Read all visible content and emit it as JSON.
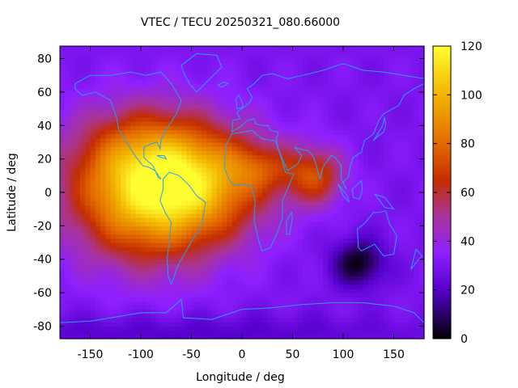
{
  "chart_data": {
    "type": "heatmap",
    "title": "VTEC / TECU 20250321_080.66000",
    "xlabel": "Longitude / deg",
    "ylabel": "Latitude / deg",
    "xlim": [
      -180,
      180
    ],
    "ylim": [
      -87.5,
      87.5
    ],
    "x_ticks": [
      -150,
      -100,
      -50,
      0,
      50,
      100,
      150
    ],
    "y_ticks": [
      -80,
      -60,
      -40,
      -20,
      0,
      20,
      40,
      60,
      80
    ],
    "colorbar": {
      "range": [
        0,
        120
      ],
      "ticks": [
        0,
        20,
        40,
        60,
        80,
        100,
        120
      ],
      "stops": [
        {
          "value": 0,
          "color": "#000000"
        },
        {
          "value": 20,
          "color": "#5500cc"
        },
        {
          "value": 35,
          "color": "#8f1fff"
        },
        {
          "value": 50,
          "color": "#a7349b"
        },
        {
          "value": 65,
          "color": "#c42d00"
        },
        {
          "value": 80,
          "color": "#e36b00"
        },
        {
          "value": 100,
          "color": "#f2b400"
        },
        {
          "value": 120,
          "color": "#ffff30"
        }
      ]
    },
    "grid_step_deg": {
      "lon": 5,
      "lat": 2.5
    },
    "coastline_color": "#2a9df4",
    "features": [
      {
        "lon": -90,
        "lat": 0,
        "sigma_lon": 55,
        "sigma_lat": 28,
        "peak": 75
      },
      {
        "lon": -35,
        "lat": 8,
        "sigma_lon": 50,
        "sigma_lat": 22,
        "peak": 35
      },
      {
        "lon": 20,
        "lat": 15,
        "sigma_lon": 22,
        "sigma_lat": 10,
        "peak": 20
      },
      {
        "lon": 72,
        "lat": 10,
        "sigma_lon": 20,
        "sigma_lat": 12,
        "peak": 38
      },
      {
        "lon": -105,
        "lat": 28,
        "sigma_lon": 45,
        "sigma_lat": 18,
        "peak": 15
      },
      {
        "lon": 115,
        "lat": -42,
        "sigma_lon": 18,
        "sigma_lat": 10,
        "peak": -28
      },
      {
        "lon": -60,
        "lat": -84,
        "sigma_lon": 180,
        "sigma_lat": 8,
        "peak": -10
      }
    ],
    "baseline_tec": 30,
    "coastlines": [
      {
        "name": "north-america",
        "points": [
          [
            -165,
            65
          ],
          [
            -150,
            70
          ],
          [
            -130,
            70
          ],
          [
            -110,
            72
          ],
          [
            -95,
            70
          ],
          [
            -80,
            72
          ],
          [
            -70,
            65
          ],
          [
            -60,
            55
          ],
          [
            -65,
            47
          ],
          [
            -70,
            42
          ],
          [
            -76,
            37
          ],
          [
            -80,
            32
          ],
          [
            -81,
            26
          ],
          [
            -84,
            30
          ],
          [
            -90,
            29
          ],
          [
            -97,
            27
          ],
          [
            -97,
            21
          ],
          [
            -92,
            18
          ],
          [
            -88,
            16
          ],
          [
            -85,
            12
          ],
          [
            -83,
            9
          ],
          [
            -80,
            8
          ],
          [
            -86,
            13
          ],
          [
            -92,
            15
          ],
          [
            -98,
            16
          ],
          [
            -106,
            22
          ],
          [
            -112,
            28
          ],
          [
            -117,
            32
          ],
          [
            -122,
            38
          ],
          [
            -124,
            45
          ],
          [
            -130,
            55
          ],
          [
            -145,
            60
          ],
          [
            -158,
            58
          ],
          [
            -165,
            62
          ],
          [
            -165,
            65
          ]
        ]
      },
      {
        "name": "south-america",
        "points": [
          [
            -78,
            8
          ],
          [
            -72,
            12
          ],
          [
            -62,
            10
          ],
          [
            -52,
            4
          ],
          [
            -45,
            -2
          ],
          [
            -36,
            -6
          ],
          [
            -38,
            -13
          ],
          [
            -40,
            -21
          ],
          [
            -48,
            -27
          ],
          [
            -55,
            -35
          ],
          [
            -60,
            -40
          ],
          [
            -65,
            -46
          ],
          [
            -68,
            -52
          ],
          [
            -70,
            -55
          ],
          [
            -73,
            -50
          ],
          [
            -74,
            -40
          ],
          [
            -72,
            -30
          ],
          [
            -70,
            -18
          ],
          [
            -76,
            -12
          ],
          [
            -81,
            -5
          ],
          [
            -78,
            2
          ],
          [
            -78,
            8
          ]
        ]
      },
      {
        "name": "africa",
        "points": [
          [
            -17,
            21
          ],
          [
            -16,
            28
          ],
          [
            -10,
            35
          ],
          [
            0,
            36
          ],
          [
            10,
            37
          ],
          [
            20,
            32
          ],
          [
            32,
            31
          ],
          [
            35,
            28
          ],
          [
            43,
            12
          ],
          [
            51,
            11
          ],
          [
            45,
            2
          ],
          [
            40,
            -5
          ],
          [
            40,
            -15
          ],
          [
            35,
            -24
          ],
          [
            28,
            -33
          ],
          [
            20,
            -35
          ],
          [
            17,
            -30
          ],
          [
            12,
            -17
          ],
          [
            13,
            -5
          ],
          [
            9,
            4
          ],
          [
            0,
            5
          ],
          [
            -8,
            4
          ],
          [
            -13,
            8
          ],
          [
            -17,
            14
          ],
          [
            -17,
            21
          ]
        ]
      },
      {
        "name": "europe-asia",
        "points": [
          [
            -10,
            36
          ],
          [
            -9,
            43
          ],
          [
            -2,
            44
          ],
          [
            -5,
            48
          ],
          [
            2,
            51
          ],
          [
            8,
            54
          ],
          [
            10,
            57
          ],
          [
            5,
            62
          ],
          [
            12,
            65
          ],
          [
            20,
            70
          ],
          [
            30,
            71
          ],
          [
            45,
            68
          ],
          [
            60,
            70
          ],
          [
            80,
            73
          ],
          [
            100,
            77
          ],
          [
            120,
            73
          ],
          [
            140,
            72
          ],
          [
            160,
            70
          ],
          [
            180,
            68
          ],
          [
            180,
            65
          ],
          [
            170,
            62
          ],
          [
            160,
            58
          ],
          [
            155,
            52
          ],
          [
            140,
            47
          ],
          [
            135,
            43
          ],
          [
            130,
            35
          ],
          [
            121,
            31
          ],
          [
            118,
            24
          ],
          [
            110,
            21
          ],
          [
            107,
            16
          ],
          [
            105,
            9
          ],
          [
            100,
            6
          ],
          [
            103,
            2
          ],
          [
            98,
            8
          ],
          [
            98,
            16
          ],
          [
            92,
            21
          ],
          [
            88,
            22
          ],
          [
            80,
            15
          ],
          [
            77,
            8
          ],
          [
            73,
            17
          ],
          [
            70,
            22
          ],
          [
            65,
            25
          ],
          [
            57,
            26
          ],
          [
            52,
            27
          ],
          [
            56,
            24
          ],
          [
            59,
            22
          ],
          [
            55,
            17
          ],
          [
            45,
            13
          ],
          [
            40,
            20
          ],
          [
            35,
            27
          ],
          [
            34,
            32
          ],
          [
            36,
            36
          ],
          [
            28,
            37
          ],
          [
            26,
            40
          ],
          [
            20,
            40
          ],
          [
            14,
            41
          ],
          [
            12,
            44
          ],
          [
            5,
            43
          ],
          [
            0,
            40
          ],
          [
            -10,
            36
          ]
        ]
      },
      {
        "name": "greenland",
        "points": [
          [
            -60,
            76
          ],
          [
            -45,
            83
          ],
          [
            -25,
            82
          ],
          [
            -20,
            75
          ],
          [
            -35,
            66
          ],
          [
            -45,
            60
          ],
          [
            -52,
            65
          ],
          [
            -58,
            72
          ],
          [
            -60,
            76
          ]
        ]
      },
      {
        "name": "australia",
        "points": [
          [
            114,
            -22
          ],
          [
            122,
            -18
          ],
          [
            130,
            -12
          ],
          [
            136,
            -12
          ],
          [
            142,
            -11
          ],
          [
            146,
            -19
          ],
          [
            153,
            -26
          ],
          [
            150,
            -37
          ],
          [
            140,
            -38
          ],
          [
            131,
            -31
          ],
          [
            118,
            -35
          ],
          [
            115,
            -33
          ],
          [
            114,
            -22
          ]
        ]
      },
      {
        "name": "antarctica",
        "points": [
          [
            -180,
            -78
          ],
          [
            -150,
            -77
          ],
          [
            -120,
            -74
          ],
          [
            -100,
            -72
          ],
          [
            -75,
            -72
          ],
          [
            -60,
            -64
          ],
          [
            -58,
            -75
          ],
          [
            -30,
            -76
          ],
          [
            0,
            -70
          ],
          [
            30,
            -69
          ],
          [
            60,
            -67
          ],
          [
            90,
            -66
          ],
          [
            120,
            -66
          ],
          [
            150,
            -68
          ],
          [
            170,
            -72
          ],
          [
            180,
            -78
          ]
        ]
      },
      {
        "name": "great-britain",
        "points": [
          [
            -5,
            50
          ],
          [
            1,
            51
          ],
          [
            0,
            54
          ],
          [
            -3,
            58
          ],
          [
            -6,
            56
          ],
          [
            -5,
            50
          ]
        ]
      },
      {
        "name": "madagascar",
        "points": [
          [
            44,
            -25
          ],
          [
            47,
            -25
          ],
          [
            50,
            -15
          ],
          [
            49,
            -12
          ],
          [
            44,
            -17
          ],
          [
            44,
            -25
          ]
        ]
      },
      {
        "name": "japan",
        "points": [
          [
            130,
            31
          ],
          [
            135,
            34
          ],
          [
            140,
            36
          ],
          [
            142,
            40
          ],
          [
            141,
            45
          ],
          [
            139,
            40
          ],
          [
            133,
            34
          ],
          [
            130,
            31
          ]
        ]
      },
      {
        "name": "borneo",
        "points": [
          [
            109,
            2
          ],
          [
            118,
            7
          ],
          [
            119,
            1
          ],
          [
            116,
            -4
          ],
          [
            110,
            -3
          ],
          [
            109,
            2
          ]
        ]
      },
      {
        "name": "sumatra",
        "points": [
          [
            95,
            5
          ],
          [
            104,
            -2
          ],
          [
            106,
            -6
          ],
          [
            100,
            -2
          ],
          [
            95,
            5
          ]
        ]
      },
      {
        "name": "new-guinea",
        "points": [
          [
            131,
            -1
          ],
          [
            141,
            -3
          ],
          [
            150,
            -10
          ],
          [
            141,
            -9
          ],
          [
            135,
            -4
          ],
          [
            131,
            -1
          ]
        ]
      },
      {
        "name": "new-zealand",
        "points": [
          [
            172,
            -34
          ],
          [
            178,
            -38
          ],
          [
            172,
            -42
          ],
          [
            167,
            -46
          ],
          [
            172,
            -34
          ]
        ]
      },
      {
        "name": "cuba",
        "points": [
          [
            -84,
            22
          ],
          [
            -77,
            22
          ],
          [
            -75,
            20
          ],
          [
            -80,
            21
          ],
          [
            -84,
            22
          ]
        ]
      },
      {
        "name": "iceland",
        "points": [
          [
            -24,
            64
          ],
          [
            -18,
            66
          ],
          [
            -14,
            65
          ],
          [
            -20,
            63
          ],
          [
            -24,
            64
          ]
        ]
      }
    ]
  }
}
